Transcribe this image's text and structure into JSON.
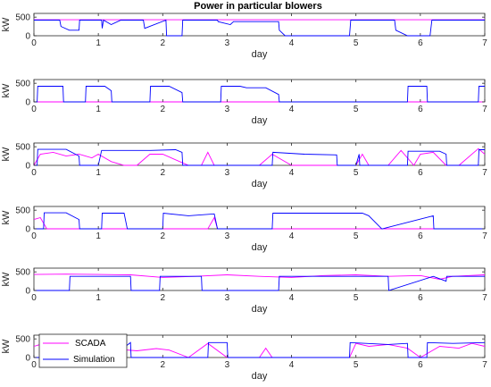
{
  "chart_data": {
    "type": "line",
    "title": "Power in particular blowers",
    "series_styles": [
      {
        "name": "SCADA",
        "color": "#ff00ff"
      },
      {
        "name": "Simulation",
        "color": "#0000ff"
      }
    ],
    "legend": {
      "position": "bottom-left",
      "subplot": 6
    },
    "subplots": [
      {
        "xlabel": "day",
        "ylabel": "kW",
        "xlim": [
          0,
          7
        ],
        "ylim": [
          0,
          600
        ],
        "xticks": [
          "0",
          "1",
          "2",
          "3",
          "4",
          "5",
          "6",
          "7"
        ],
        "yticks": [
          "0",
          "500"
        ],
        "series": [
          {
            "name": "SCADA",
            "x": [
              0,
              0.5,
              1,
              1.5,
              2,
              2.5,
              3,
              3.5,
              4,
              4.5,
              5,
              5.5,
              6,
              6.5,
              7
            ],
            "values": [
              430,
              430,
              430,
              430,
              430,
              430,
              430,
              430,
              430,
              430,
              430,
              430,
              430,
              430,
              430
            ]
          },
          {
            "name": "Simulation",
            "x": [
              0,
              0.4,
              0.42,
              0.55,
              0.7,
              0.71,
              1.05,
              1.06,
              1.08,
              1.2,
              1.35,
              1.36,
              1.7,
              1.72,
              2.05,
              2.06,
              2.3,
              2.31,
              2.85,
              2.86,
              3.05,
              3.1,
              3.8,
              3.81,
              3.9,
              4.9,
              4.92,
              5.0,
              5.6,
              5.62,
              5.8,
              6.15,
              6.18,
              7.0
            ],
            "values": [
              420,
              420,
              250,
              150,
              150,
              420,
              420,
              200,
              420,
              300,
              420,
              420,
              420,
              200,
              420,
              0,
              0,
              420,
              420,
              380,
              300,
              380,
              380,
              150,
              0,
              0,
              420,
              420,
              420,
              150,
              0,
              0,
              420,
              420
            ]
          }
        ]
      },
      {
        "xlabel": "day",
        "ylabel": "kW",
        "xlim": [
          0,
          7
        ],
        "ylim": [
          0,
          600
        ],
        "xticks": [
          "0",
          "1",
          "2",
          "3",
          "4",
          "5",
          "6",
          "7"
        ],
        "yticks": [
          "0",
          "500"
        ],
        "series": [
          {
            "name": "SCADA",
            "x": [
              0,
              7
            ],
            "values": [
              0,
              0
            ]
          },
          {
            "name": "Simulation",
            "x": [
              0,
              0.05,
              0.06,
              0.45,
              0.46,
              0.8,
              0.81,
              1.1,
              1.2,
              1.21,
              1.8,
              1.81,
              2.1,
              2.3,
              2.31,
              2.9,
              2.91,
              3.2,
              3.3,
              3.6,
              3.8,
              3.81,
              5.8,
              5.81,
              6.1,
              6.11,
              6.9,
              6.91,
              7.0
            ],
            "values": [
              0,
              0,
              420,
              420,
              0,
              0,
              420,
              420,
              300,
              0,
              0,
              420,
              420,
              250,
              0,
              0,
              420,
              420,
              380,
              380,
              200,
              0,
              0,
              420,
              420,
              0,
              0,
              420,
              420
            ]
          }
        ]
      },
      {
        "xlabel": "day",
        "ylabel": "kW",
        "xlim": [
          0,
          7
        ],
        "ylim": [
          0,
          600
        ],
        "xticks": [
          "0",
          "1",
          "2",
          "3",
          "4",
          "5",
          "6",
          "7"
        ],
        "yticks": [
          "0",
          "500"
        ],
        "series": [
          {
            "name": "SCADA",
            "x": [
              0,
              0.1,
              0.3,
              0.5,
              0.7,
              0.9,
              1.0,
              1.2,
              1.4,
              1.6,
              1.8,
              2.0,
              2.2,
              2.4,
              2.6,
              2.7,
              2.8,
              3.0,
              3.5,
              3.7,
              4.0,
              4.5,
              5.0,
              5.1,
              5.2,
              5.5,
              5.7,
              5.9,
              6.0,
              6.2,
              6.4,
              6.6,
              6.9,
              7.0
            ],
            "values": [
              0,
              300,
              350,
              250,
              300,
              200,
              300,
              100,
              0,
              0,
              300,
              300,
              150,
              0,
              0,
              350,
              0,
              0,
              0,
              300,
              0,
              0,
              0,
              300,
              0,
              0,
              400,
              0,
              300,
              350,
              0,
              0,
              450,
              300
            ]
          },
          {
            "name": "Simulation",
            "x": [
              0,
              0.05,
              0.06,
              0.5,
              0.7,
              0.71,
              1.0,
              1.05,
              1.06,
              1.8,
              1.81,
              2.2,
              2.3,
              2.31,
              3.7,
              3.71,
              4.2,
              4.7,
              4.71,
              5.0,
              5.05,
              5.06,
              5.8,
              5.81,
              6.3,
              6.4,
              6.41,
              6.9,
              6.91,
              7.0
            ],
            "values": [
              0,
              0,
              430,
              430,
              250,
              0,
              0,
              400,
              400,
              400,
              400,
              420,
              350,
              0,
              0,
              350,
              300,
              280,
              0,
              0,
              300,
              0,
              0,
              380,
              380,
              300,
              0,
              0,
              420,
              420
            ]
          }
        ]
      },
      {
        "xlabel": "day",
        "ylabel": "kW",
        "xlim": [
          0,
          7
        ],
        "ylim": [
          0,
          600
        ],
        "xticks": [
          "0",
          "1",
          "2",
          "3",
          "4",
          "5",
          "6",
          "7"
        ],
        "yticks": [
          "0",
          "500"
        ],
        "series": [
          {
            "name": "SCADA",
            "x": [
              0,
              0.1,
              0.2,
              0.3,
              0.45,
              2.7,
              2.8,
              2.85,
              2.9,
              3.0,
              7.0
            ],
            "values": [
              250,
              300,
              0,
              0,
              0,
              0,
              300,
              0,
              0,
              0,
              0
            ]
          },
          {
            "name": "Simulation",
            "x": [
              0,
              0.15,
              0.16,
              0.5,
              0.7,
              0.71,
              1.05,
              1.06,
              1.4,
              1.45,
              2.0,
              2.01,
              2.4,
              2.8,
              2.85,
              3.7,
              3.71,
              5.1,
              5.2,
              5.4,
              5.41,
              6.2,
              6.21,
              7.0
            ],
            "values": [
              0,
              0,
              430,
              430,
              250,
              0,
              0,
              420,
              420,
              0,
              0,
              420,
              350,
              400,
              0,
              0,
              420,
              420,
              350,
              0,
              0,
              350,
              0,
              0
            ]
          }
        ]
      },
      {
        "xlabel": "day",
        "ylabel": "kW",
        "xlim": [
          0,
          7
        ],
        "ylim": [
          0,
          600
        ],
        "xticks": [
          "0",
          "1",
          "2",
          "3",
          "4",
          "5",
          "6",
          "7"
        ],
        "yticks": [
          "0",
          "500"
        ],
        "series": [
          {
            "name": "SCADA",
            "x": [
              0,
              0.5,
              1.0,
              1.5,
              2.0,
              2.5,
              3.0,
              3.5,
              4.0,
              4.5,
              5.0,
              5.5,
              6.0,
              6.3,
              6.5,
              7.0
            ],
            "values": [
              430,
              440,
              430,
              420,
              350,
              380,
              420,
              380,
              350,
              400,
              420,
              380,
              400,
              300,
              380,
              420
            ]
          },
          {
            "name": "Simulation",
            "x": [
              0,
              0.55,
              0.56,
              1.2,
              1.5,
              1.51,
              1.95,
              1.96,
              2.6,
              2.61,
              3.8,
              3.81,
              4.9,
              4.91,
              5.5,
              5.51,
              6.2,
              6.4,
              6.41,
              7.0
            ],
            "values": [
              0,
              0,
              380,
              380,
              380,
              0,
              0,
              380,
              380,
              0,
              0,
              380,
              380,
              380,
              380,
              0,
              380,
              250,
              380,
              380
            ]
          }
        ]
      },
      {
        "xlabel": "day",
        "ylabel": "kW",
        "xlim": [
          0,
          7
        ],
        "ylim": [
          0,
          600
        ],
        "xticks": [
          "0",
          "1",
          "2",
          "3",
          "4",
          "5",
          "6",
          "7"
        ],
        "yticks": [
          "0",
          "500"
        ],
        "series": [
          {
            "name": "SCADA",
            "x": [
              0,
              0.1,
              0.3,
              0.6,
              1.0,
              1.3,
              1.6,
              1.9,
              2.1,
              2.4,
              2.7,
              3.0,
              3.5,
              3.6,
              3.7,
              4.0,
              4.9,
              5.0,
              5.2,
              5.5,
              5.8,
              6.0,
              6.3,
              6.6,
              6.8,
              7.0
            ],
            "values": [
              300,
              350,
              250,
              200,
              280,
              220,
              180,
              240,
              200,
              0,
              380,
              0,
              0,
              250,
              0,
              0,
              0,
              380,
              300,
              350,
              250,
              0,
              300,
              250,
              380,
              300
            ]
          },
          {
            "name": "Simulation",
            "x": [
              0,
              0.4,
              0.41,
              0.6,
              1.0,
              1.01,
              1.2,
              1.5,
              1.51,
              2.7,
              2.71,
              3.0,
              3.01,
              4.9,
              4.91,
              5.5,
              5.8,
              5.81,
              6.1,
              6.11,
              6.5,
              7.0
            ],
            "values": [
              0,
              0,
              400,
              400,
              400,
              0,
              0,
              400,
              0,
              0,
              400,
              400,
              0,
              0,
              400,
              350,
              380,
              0,
              0,
              400,
              380,
              400
            ]
          }
        ]
      }
    ]
  },
  "legend_labels": {
    "scada": "SCADA",
    "simulation": "Simulation"
  }
}
